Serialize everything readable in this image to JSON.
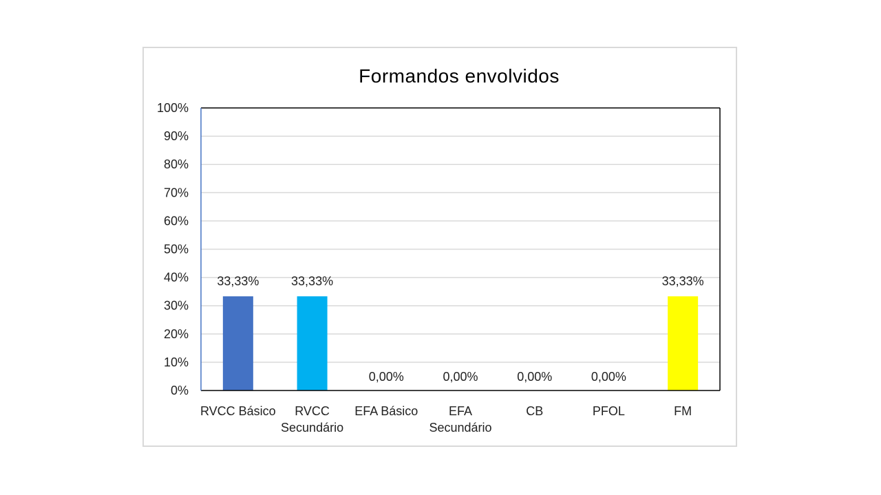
{
  "chart_data": {
    "type": "bar",
    "title": "Formandos envolvidos",
    "categories": [
      [
        "RVCC Básico"
      ],
      [
        "RVCC",
        "Secundário"
      ],
      [
        "EFA Básico"
      ],
      [
        "EFA",
        "Secundário"
      ],
      [
        "CB"
      ],
      [
        "PFOL"
      ],
      [
        "FM"
      ]
    ],
    "values": [
      33.33,
      33.33,
      0,
      0,
      0,
      0,
      33.33
    ],
    "data_labels": [
      "33,33%",
      "33,33%",
      "0,00%",
      "0,00%",
      "0,00%",
      "0,00%",
      "33,33%"
    ],
    "bar_colors": [
      "#4472c4",
      "#00b0f0",
      "#4472c4",
      "#4472c4",
      "#4472c4",
      "#4472c4",
      "#ffff00"
    ],
    "ylim": [
      0,
      100
    ],
    "yticks": [
      0,
      10,
      20,
      30,
      40,
      50,
      60,
      70,
      80,
      90,
      100
    ],
    "ytick_labels": [
      "0%",
      "10%",
      "20%",
      "30%",
      "40%",
      "50%",
      "60%",
      "70%",
      "80%",
      "90%",
      "100%"
    ],
    "grid": true,
    "legend": "none",
    "xlabel": "",
    "ylabel": ""
  }
}
